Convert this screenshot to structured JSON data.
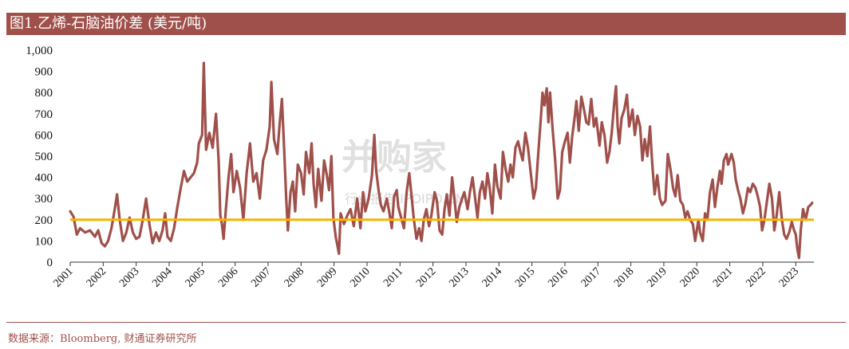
{
  "header": {
    "title": "图1.乙烯-石脑油价差 (美元/吨)"
  },
  "footer": {
    "source": "数据来源：Bloomberg, 财通证券研究所"
  },
  "watermark": {
    "main": "并购家",
    "sub": "行业报告  IPOIPO.CN"
  },
  "colors": {
    "header_bg": "#a0504a",
    "series": "#a0504a",
    "reference": "#f5b400"
  },
  "chart_data": {
    "type": "line",
    "title": "图1.乙烯-石脑油价差 (美元/吨)",
    "xlabel": "",
    "ylabel": "",
    "ylim": [
      0,
      1000
    ],
    "yticks": [
      {
        "value": 0,
        "label": "0"
      },
      {
        "value": 100,
        "label": "100"
      },
      {
        "value": 200,
        "label": "200"
      },
      {
        "value": 300,
        "label": "300"
      },
      {
        "value": 400,
        "label": "400"
      },
      {
        "value": 500,
        "label": "500"
      },
      {
        "value": 600,
        "label": "600"
      },
      {
        "value": 700,
        "label": "700"
      },
      {
        "value": 800,
        "label": "800"
      },
      {
        "value": 900,
        "label": "900"
      },
      {
        "value": 1000,
        "label": "1,000"
      }
    ],
    "xlim": [
      2001.0,
      2023.55
    ],
    "xticks": [
      "2001",
      "2002",
      "2003",
      "2004",
      "2005",
      "2006",
      "2007",
      "2008",
      "2009",
      "2010",
      "2011",
      "2012",
      "2013",
      "2014",
      "2015",
      "2016",
      "2017",
      "2018",
      "2019",
      "2020",
      "2021",
      "2022",
      "2023"
    ],
    "grid": false,
    "reference_line": {
      "value": 200
    },
    "series": [
      {
        "points": [
          [
            2001.0,
            240
          ],
          [
            2001.1,
            215
          ],
          [
            2001.2,
            130
          ],
          [
            2001.3,
            160
          ],
          [
            2001.45,
            140
          ],
          [
            2001.6,
            150
          ],
          [
            2001.75,
            120
          ],
          [
            2001.85,
            150
          ],
          [
            2001.95,
            90
          ],
          [
            2002.05,
            75
          ],
          [
            2002.15,
            100
          ],
          [
            2002.25,
            160
          ],
          [
            2002.35,
            250
          ],
          [
            2002.42,
            320
          ],
          [
            2002.5,
            200
          ],
          [
            2002.6,
            100
          ],
          [
            2002.7,
            140
          ],
          [
            2002.8,
            210
          ],
          [
            2002.9,
            140
          ],
          [
            2003.0,
            110
          ],
          [
            2003.1,
            120
          ],
          [
            2003.2,
            200
          ],
          [
            2003.3,
            300
          ],
          [
            2003.4,
            180
          ],
          [
            2003.5,
            90
          ],
          [
            2003.6,
            140
          ],
          [
            2003.7,
            100
          ],
          [
            2003.8,
            150
          ],
          [
            2003.88,
            230
          ],
          [
            2003.95,
            120
          ],
          [
            2004.05,
            100
          ],
          [
            2004.15,
            160
          ],
          [
            2004.25,
            260
          ],
          [
            2004.35,
            350
          ],
          [
            2004.45,
            430
          ],
          [
            2004.55,
            380
          ],
          [
            2004.65,
            400
          ],
          [
            2004.75,
            420
          ],
          [
            2004.85,
            470
          ],
          [
            2004.9,
            560
          ],
          [
            2005.0,
            600
          ],
          [
            2005.05,
            940
          ],
          [
            2005.12,
            530
          ],
          [
            2005.22,
            610
          ],
          [
            2005.32,
            540
          ],
          [
            2005.42,
            700
          ],
          [
            2005.5,
            480
          ],
          [
            2005.55,
            220
          ],
          [
            2005.6,
            180
          ],
          [
            2005.65,
            110
          ],
          [
            2005.72,
            250
          ],
          [
            2005.8,
            400
          ],
          [
            2005.88,
            510
          ],
          [
            2005.95,
            330
          ],
          [
            2006.05,
            430
          ],
          [
            2006.15,
            350
          ],
          [
            2006.25,
            200
          ],
          [
            2006.35,
            420
          ],
          [
            2006.45,
            560
          ],
          [
            2006.55,
            380
          ],
          [
            2006.65,
            420
          ],
          [
            2006.75,
            300
          ],
          [
            2006.85,
            480
          ],
          [
            2006.95,
            530
          ],
          [
            2007.05,
            640
          ],
          [
            2007.1,
            850
          ],
          [
            2007.18,
            580
          ],
          [
            2007.28,
            510
          ],
          [
            2007.35,
            650
          ],
          [
            2007.42,
            770
          ],
          [
            2007.48,
            560
          ],
          [
            2007.55,
            300
          ],
          [
            2007.6,
            150
          ],
          [
            2007.68,
            330
          ],
          [
            2007.75,
            380
          ],
          [
            2007.82,
            240
          ],
          [
            2007.9,
            460
          ],
          [
            2008.0,
            420
          ],
          [
            2008.08,
            320
          ],
          [
            2008.15,
            520
          ],
          [
            2008.25,
            420
          ],
          [
            2008.32,
            560
          ],
          [
            2008.38,
            370
          ],
          [
            2008.45,
            260
          ],
          [
            2008.52,
            440
          ],
          [
            2008.62,
            290
          ],
          [
            2008.7,
            480
          ],
          [
            2008.78,
            410
          ],
          [
            2008.85,
            340
          ],
          [
            2008.92,
            500
          ],
          [
            2008.98,
            210
          ],
          [
            2009.05,
            120
          ],
          [
            2009.1,
            80
          ],
          [
            2009.15,
            40
          ],
          [
            2009.2,
            230
          ],
          [
            2009.3,
            180
          ],
          [
            2009.4,
            220
          ],
          [
            2009.5,
            250
          ],
          [
            2009.6,
            170
          ],
          [
            2009.7,
            300
          ],
          [
            2009.8,
            160
          ],
          [
            2009.88,
            330
          ],
          [
            2009.95,
            240
          ],
          [
            2010.05,
            300
          ],
          [
            2010.15,
            410
          ],
          [
            2010.22,
            600
          ],
          [
            2010.28,
            430
          ],
          [
            2010.35,
            340
          ],
          [
            2010.42,
            270
          ],
          [
            2010.5,
            240
          ],
          [
            2010.6,
            300
          ],
          [
            2010.68,
            230
          ],
          [
            2010.75,
            160
          ],
          [
            2010.82,
            310
          ],
          [
            2010.9,
            340
          ],
          [
            2010.95,
            260
          ],
          [
            2011.05,
            200
          ],
          [
            2011.12,
            160
          ],
          [
            2011.2,
            330
          ],
          [
            2011.28,
            420
          ],
          [
            2011.35,
            310
          ],
          [
            2011.42,
            200
          ],
          [
            2011.5,
            110
          ],
          [
            2011.58,
            160
          ],
          [
            2011.65,
            100
          ],
          [
            2011.72,
            200
          ],
          [
            2011.8,
            250
          ],
          [
            2011.88,
            170
          ],
          [
            2011.95,
            220
          ],
          [
            2012.05,
            330
          ],
          [
            2012.12,
            290
          ],
          [
            2012.2,
            150
          ],
          [
            2012.28,
            130
          ],
          [
            2012.35,
            250
          ],
          [
            2012.42,
            320
          ],
          [
            2012.5,
            220
          ],
          [
            2012.58,
            400
          ],
          [
            2012.65,
            300
          ],
          [
            2012.72,
            190
          ],
          [
            2012.8,
            260
          ],
          [
            2012.88,
            300
          ],
          [
            2012.95,
            330
          ],
          [
            2013.05,
            250
          ],
          [
            2013.12,
            330
          ],
          [
            2013.2,
            400
          ],
          [
            2013.28,
            300
          ],
          [
            2013.35,
            210
          ],
          [
            2013.42,
            330
          ],
          [
            2013.5,
            380
          ],
          [
            2013.58,
            300
          ],
          [
            2013.65,
            420
          ],
          [
            2013.72,
            350
          ],
          [
            2013.8,
            230
          ],
          [
            2013.88,
            460
          ],
          [
            2013.95,
            360
          ],
          [
            2014.05,
            300
          ],
          [
            2014.12,
            520
          ],
          [
            2014.2,
            440
          ],
          [
            2014.28,
            380
          ],
          [
            2014.35,
            460
          ],
          [
            2014.42,
            400
          ],
          [
            2014.5,
            540
          ],
          [
            2014.58,
            570
          ],
          [
            2014.65,
            520
          ],
          [
            2014.72,
            480
          ],
          [
            2014.8,
            610
          ],
          [
            2014.88,
            540
          ],
          [
            2014.95,
            440
          ],
          [
            2015.05,
            300
          ],
          [
            2015.12,
            350
          ],
          [
            2015.2,
            530
          ],
          [
            2015.28,
            700
          ],
          [
            2015.32,
            800
          ],
          [
            2015.38,
            740
          ],
          [
            2015.45,
            820
          ],
          [
            2015.5,
            660
          ],
          [
            2015.55,
            800
          ],
          [
            2015.62,
            640
          ],
          [
            2015.7,
            490
          ],
          [
            2015.78,
            300
          ],
          [
            2015.85,
            340
          ],
          [
            2015.92,
            520
          ],
          [
            2016.0,
            570
          ],
          [
            2016.08,
            610
          ],
          [
            2016.15,
            470
          ],
          [
            2016.22,
            590
          ],
          [
            2016.3,
            690
          ],
          [
            2016.35,
            760
          ],
          [
            2016.42,
            620
          ],
          [
            2016.5,
            780
          ],
          [
            2016.58,
            720
          ],
          [
            2016.65,
            660
          ],
          [
            2016.72,
            650
          ],
          [
            2016.8,
            770
          ],
          [
            2016.88,
            640
          ],
          [
            2016.95,
            680
          ],
          [
            2017.05,
            550
          ],
          [
            2017.12,
            660
          ],
          [
            2017.2,
            600
          ],
          [
            2017.28,
            470
          ],
          [
            2017.35,
            520
          ],
          [
            2017.42,
            610
          ],
          [
            2017.5,
            760
          ],
          [
            2017.55,
            830
          ],
          [
            2017.6,
            640
          ],
          [
            2017.65,
            560
          ],
          [
            2017.72,
            680
          ],
          [
            2017.8,
            720
          ],
          [
            2017.88,
            790
          ],
          [
            2017.95,
            640
          ],
          [
            2018.05,
            720
          ],
          [
            2018.12,
            600
          ],
          [
            2018.2,
            690
          ],
          [
            2018.28,
            640
          ],
          [
            2018.35,
            480
          ],
          [
            2018.42,
            580
          ],
          [
            2018.5,
            500
          ],
          [
            2018.58,
            640
          ],
          [
            2018.65,
            460
          ],
          [
            2018.72,
            320
          ],
          [
            2018.8,
            410
          ],
          [
            2018.88,
            300
          ],
          [
            2018.95,
            270
          ],
          [
            2019.05,
            290
          ],
          [
            2019.12,
            510
          ],
          [
            2019.2,
            440
          ],
          [
            2019.28,
            350
          ],
          [
            2019.35,
            310
          ],
          [
            2019.42,
            410
          ],
          [
            2019.5,
            290
          ],
          [
            2019.58,
            270
          ],
          [
            2019.65,
            210
          ],
          [
            2019.72,
            240
          ],
          [
            2019.8,
            200
          ],
          [
            2019.88,
            180
          ],
          [
            2019.95,
            100
          ],
          [
            2020.05,
            200
          ],
          [
            2020.1,
            140
          ],
          [
            2020.18,
            100
          ],
          [
            2020.25,
            230
          ],
          [
            2020.32,
            200
          ],
          [
            2020.4,
            330
          ],
          [
            2020.48,
            390
          ],
          [
            2020.55,
            260
          ],
          [
            2020.62,
            350
          ],
          [
            2020.7,
            430
          ],
          [
            2020.75,
            370
          ],
          [
            2020.82,
            480
          ],
          [
            2020.9,
            510
          ],
          [
            2020.95,
            460
          ],
          [
            2021.05,
            510
          ],
          [
            2021.12,
            470
          ],
          [
            2021.18,
            390
          ],
          [
            2021.25,
            340
          ],
          [
            2021.32,
            300
          ],
          [
            2021.4,
            230
          ],
          [
            2021.48,
            280
          ],
          [
            2021.55,
            350
          ],
          [
            2021.62,
            330
          ],
          [
            2021.7,
            370
          ],
          [
            2021.78,
            350
          ],
          [
            2021.85,
            310
          ],
          [
            2021.92,
            260
          ],
          [
            2021.98,
            150
          ],
          [
            2022.05,
            200
          ],
          [
            2022.12,
            280
          ],
          [
            2022.2,
            370
          ],
          [
            2022.28,
            300
          ],
          [
            2022.35,
            150
          ],
          [
            2022.42,
            220
          ],
          [
            2022.5,
            330
          ],
          [
            2022.58,
            200
          ],
          [
            2022.65,
            130
          ],
          [
            2022.72,
            110
          ],
          [
            2022.8,
            140
          ],
          [
            2022.88,
            190
          ],
          [
            2022.95,
            150
          ],
          [
            2023.0,
            130
          ],
          [
            2023.05,
            60
          ],
          [
            2023.1,
            20
          ],
          [
            2023.15,
            150
          ],
          [
            2023.22,
            250
          ],
          [
            2023.3,
            200
          ],
          [
            2023.38,
            260
          ],
          [
            2023.45,
            270
          ],
          [
            2023.5,
            280
          ]
        ]
      }
    ]
  }
}
